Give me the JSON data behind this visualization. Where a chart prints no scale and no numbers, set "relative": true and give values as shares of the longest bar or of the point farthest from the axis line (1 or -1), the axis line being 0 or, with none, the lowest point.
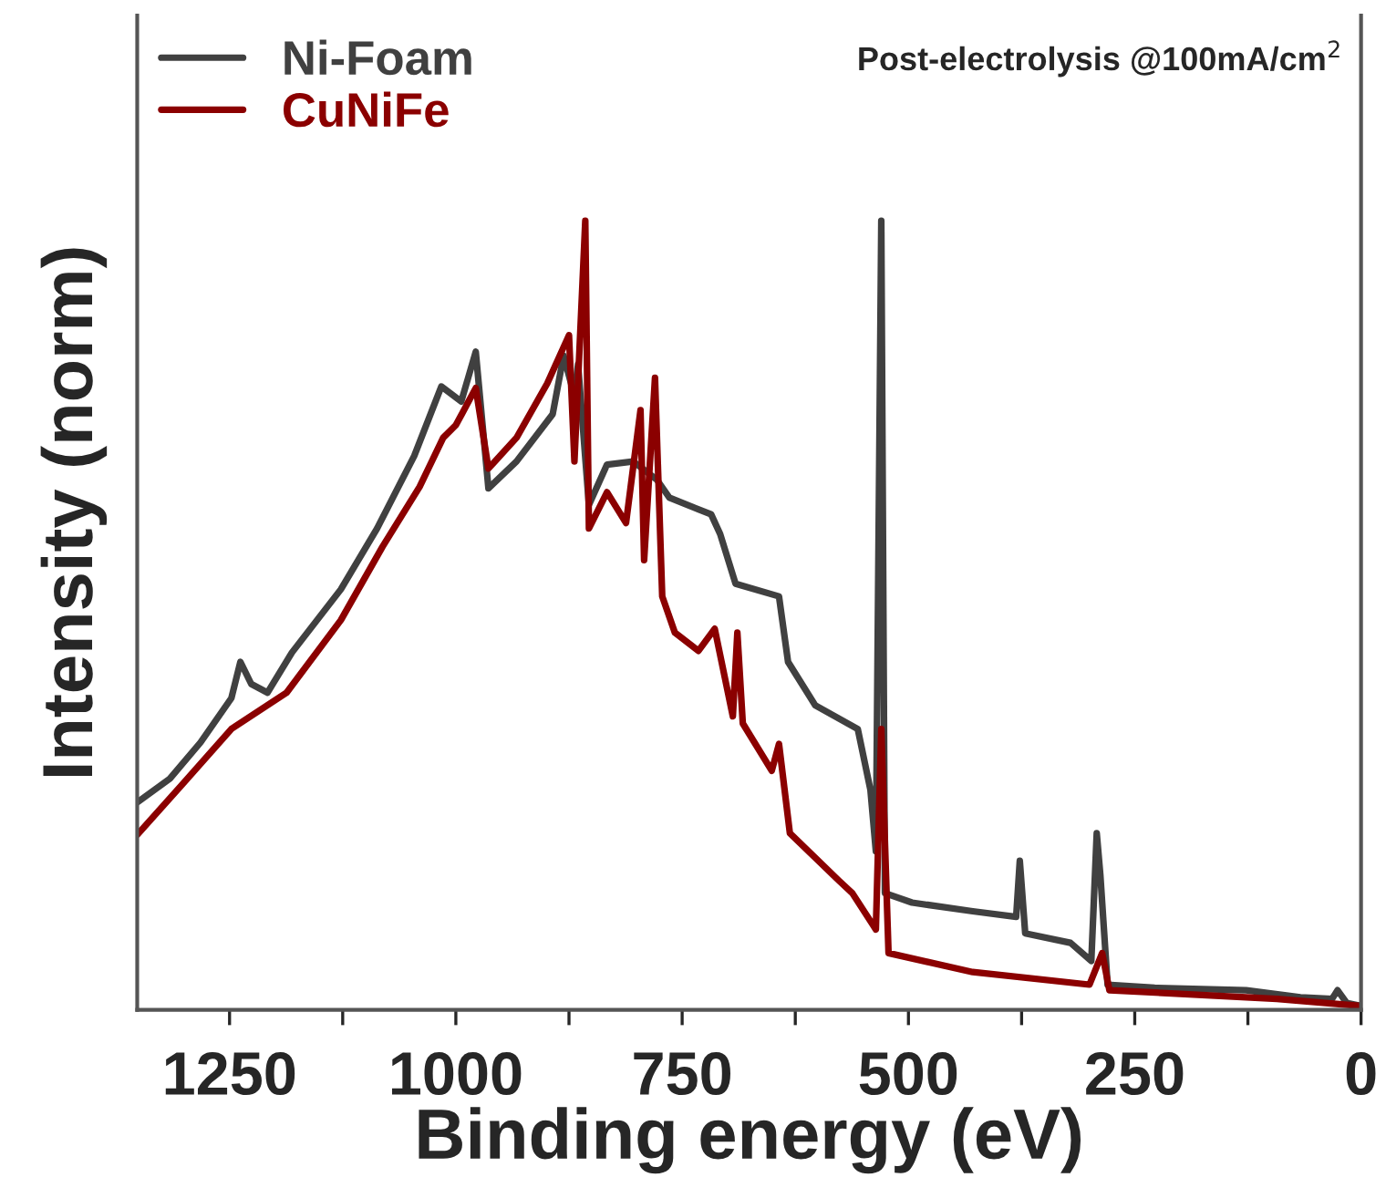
{
  "chart_data": {
    "type": "line",
    "xlabel": "Binding energy (eV)",
    "ylabel": "Intensity (norm)",
    "relative": true,
    "annotations": [
      "Post-electrolysis @100mA/cm$^{2}$"
    ],
    "xlim": [
      1352,
      0
    ],
    "xticks": [
      1250,
      {
        "value": 1125,
        "label": null
      },
      1000,
      {
        "value": 875,
        "label": null
      },
      750,
      {
        "value": 625,
        "label": null
      },
      500,
      {
        "value": 375,
        "label": null
      },
      250,
      {
        "value": 125,
        "label": null
      },
      0
    ],
    "legend": "top left",
    "grid": false,
    "marker": "none",
    "line_style": "solid",
    "series": [
      {
        "name": "Ni-Foam",
        "color": "#404040",
        "x": [
          1352,
          1316,
          1282,
          1248,
          1238,
          1226,
          1208,
          1181,
          1127,
          1087,
          1046,
          1016,
          994,
          978,
          964,
          933,
          893,
          881,
          869,
          865,
          853,
          833,
          804,
          778,
          764,
          718,
          708,
          691,
          643,
          633,
          603,
          556,
          542,
          536,
          530,
          526,
          496,
          429,
          381,
          377,
          371,
          321,
          298,
          292,
          288,
          280,
          228,
          127,
          67,
          32,
          26,
          16,
          0
        ],
        "values": [
          0.263,
          0.293,
          0.339,
          0.395,
          0.441,
          0.413,
          0.402,
          0.453,
          0.533,
          0.61,
          0.702,
          0.79,
          0.771,
          0.834,
          0.661,
          0.695,
          0.755,
          0.829,
          0.778,
          0.818,
          0.64,
          0.691,
          0.695,
          0.672,
          0.649,
          0.628,
          0.603,
          0.54,
          0.524,
          0.441,
          0.386,
          0.356,
          0.279,
          0.201,
          1.0,
          0.148,
          0.136,
          0.125,
          0.118,
          0.189,
          0.097,
          0.085,
          0.062,
          0.224,
          0.171,
          0.032,
          0.028,
          0.025,
          0.016,
          0.014,
          0.025,
          0.009,
          0.005
        ]
      },
      {
        "name": "CuNiFe",
        "color": "#8b0000",
        "x": [
          1352,
          1302,
          1248,
          1187,
          1127,
          1081,
          1040,
          1014,
          1000,
          978,
          964,
          933,
          899,
          875,
          869,
          857,
          853,
          833,
          812,
          796,
          792,
          780,
          772,
          758,
          732,
          714,
          694,
          689,
          683,
          651,
          643,
          631,
          577,
          562,
          536,
          530,
          522,
          429,
          300,
          286,
          278,
          93,
          0
        ],
        "values": [
          0.222,
          0.286,
          0.356,
          0.402,
          0.494,
          0.587,
          0.663,
          0.725,
          0.741,
          0.788,
          0.686,
          0.725,
          0.794,
          0.855,
          0.695,
          1.0,
          0.61,
          0.656,
          0.617,
          0.76,
          0.57,
          0.801,
          0.524,
          0.478,
          0.455,
          0.483,
          0.372,
          0.478,
          0.363,
          0.303,
          0.337,
          0.224,
          0.164,
          0.148,
          0.102,
          0.356,
          0.072,
          0.048,
          0.032,
          0.072,
          0.025,
          0.014,
          0.005
        ]
      }
    ]
  }
}
